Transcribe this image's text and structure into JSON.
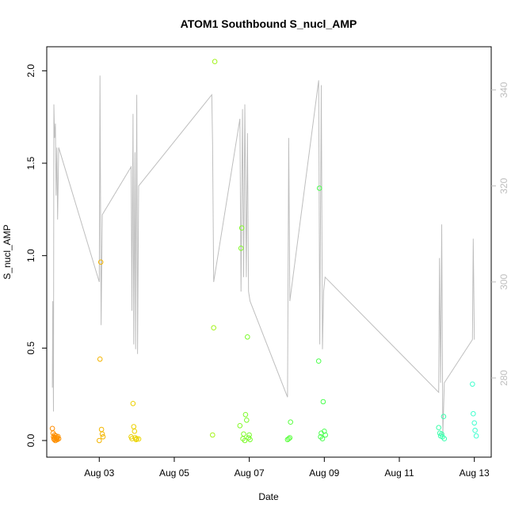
{
  "chart_data": {
    "type": "scatter",
    "title": "ATOM1 Southbound S_nucl_AMP",
    "xlabel": "Date",
    "ylabel": "S_nucl_AMP",
    "x_ticks": [
      "Aug 03",
      "Aug 05",
      "Aug 07",
      "Aug 09",
      "Aug 11",
      "Aug 13"
    ],
    "y_ticks": [
      "0.0",
      "0.5",
      "1.0",
      "1.5",
      "2.0"
    ],
    "y_ticks_right": [
      "280",
      "300",
      "320",
      "340"
    ],
    "x_range_days": [
      1.6,
      13.45
    ],
    "ylim": [
      -0.09,
      2.13
    ],
    "ylim_right": [
      263.5,
      349
    ],
    "colors": {
      "points_start": "#ff8c00",
      "points_end": "#40ffd0",
      "line": "#bebebe"
    },
    "series": [
      {
        "kind": "points",
        "x": [
          1.75,
          1.77,
          1.78,
          1.79,
          1.8,
          1.81,
          1.82,
          1.83,
          1.84,
          1.85,
          1.86,
          1.87,
          1.88,
          1.9,
          1.92,
          3.0,
          3.02,
          3.04,
          3.06,
          3.08,
          3.1,
          3.85,
          3.87,
          3.9,
          3.92,
          3.94,
          3.96,
          3.98,
          4.0,
          4.05,
          6.02,
          6.05,
          6.08,
          6.75,
          6.78,
          6.8,
          6.83,
          6.85,
          6.88,
          6.9,
          6.93,
          6.95,
          6.98,
          7.0,
          7.02,
          8.02,
          8.05,
          8.08,
          8.1,
          8.85,
          8.87,
          8.9,
          8.92,
          8.95,
          8.97,
          9.0,
          9.03,
          12.05,
          12.08,
          12.1,
          12.13,
          12.15,
          12.18,
          12.2,
          12.95,
          12.97,
          13.0,
          13.02,
          13.05
        ],
        "y": [
          0.065,
          0.04,
          0.02,
          0.01,
          0.005,
          0.03,
          0.015,
          0.0,
          0.025,
          0.012,
          0.008,
          0.018,
          0.005,
          0.022,
          0.01,
          0.0,
          0.44,
          0.965,
          0.06,
          0.035,
          0.02,
          0.02,
          0.01,
          0.2,
          0.075,
          0.05,
          0.015,
          0.005,
          0.01,
          0.008,
          0.03,
          0.61,
          2.05,
          0.08,
          1.04,
          1.15,
          0.01,
          0.035,
          0.0,
          0.14,
          0.11,
          0.56,
          0.015,
          0.03,
          0.005,
          0.005,
          0.01,
          0.015,
          0.1,
          0.43,
          1.365,
          0.02,
          0.04,
          0.01,
          0.21,
          0.05,
          0.03,
          0.07,
          0.04,
          0.025,
          0.035,
          0.02,
          0.13,
          0.01,
          0.305,
          0.145,
          0.095,
          0.055,
          0.025
        ]
      },
      {
        "kind": "line",
        "axis": "right",
        "x": [
          1.75,
          1.76,
          1.78,
          1.79,
          1.81,
          1.83,
          1.85,
          1.87,
          1.89,
          1.92,
          3.0,
          3.02,
          3.05,
          3.08,
          3.85,
          3.87,
          3.9,
          3.92,
          3.95,
          3.97,
          4.0,
          4.02,
          4.05,
          6.0,
          6.02,
          6.05,
          6.75,
          6.78,
          6.82,
          6.85,
          6.88,
          6.92,
          6.95,
          6.98,
          7.02,
          8.02,
          8.05,
          8.08,
          8.85,
          8.88,
          8.92,
          8.95,
          8.98,
          9.02,
          12.05,
          12.07,
          12.1,
          12.13,
          12.16,
          12.2,
          12.95,
          12.97,
          13.0
        ],
        "y": [
          278,
          296,
          273,
          337,
          330,
          333,
          318,
          328,
          313,
          328,
          300,
          343,
          291,
          314,
          324,
          294,
          335,
          287,
          327,
          286,
          339,
          285,
          320,
          339,
          329,
          300,
          334,
          298,
          336,
          301,
          337,
          301,
          331,
          298,
          296,
          276,
          330,
          296,
          342,
          287,
          341,
          286,
          298,
          301,
          277,
          305,
          279,
          312,
          268,
          279,
          288,
          309,
          288
        ]
      }
    ]
  }
}
